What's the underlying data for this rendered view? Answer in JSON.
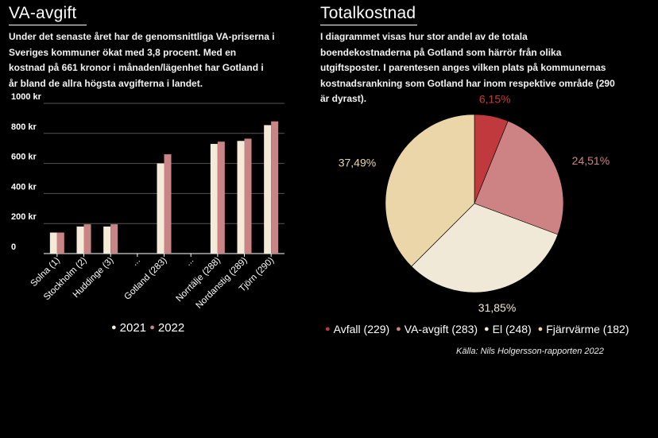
{
  "left": {
    "heading": "VA-avgift",
    "description": "Under det senaste året har de genomsnittliga VA-priserna i Sveriges kommuner ökat med 3,8 procent. Med en kostnad på 661 kronor i månaden/lägenhet har Gotland i år bland de allra högsta avgifterna i landet."
  },
  "right": {
    "heading": "Totalkostnad",
    "description": "I diagrammet visas hur stor andel av de totala boendekostnaderna på Gotland som härrör från olika utgiftsposter. I parentesen anges vilken plats på kommunernas kostnadsrankning som Gotland har inom respektive område (290 är dyrast).",
    "source": "Källa: Nils Holgersson-rapporten 2022"
  },
  "colors": {
    "c2021": "#f3ead8",
    "c2022": "#c98485",
    "avfall": "#c0393c",
    "va": "#cd8284",
    "el": "#f1e9d7",
    "fjarr": "#ebd6aa"
  },
  "chart_data": [
    {
      "type": "bar",
      "categories": [
        "Solna (1)",
        "Stockholm (2)",
        "Huddinge (3)",
        "...",
        "Gotland (283)",
        "...",
        "Norrtälje (288)",
        "Nordanstig (289)",
        "Tjörn (290)"
      ],
      "series": [
        {
          "name": "2021",
          "color": "#f3ead8",
          "values": [
            140,
            180,
            180,
            null,
            600,
            null,
            730,
            750,
            855
          ]
        },
        {
          "name": "2022",
          "color": "#c98485",
          "values": [
            140,
            195,
            195,
            null,
            661,
            null,
            745,
            765,
            880
          ]
        }
      ],
      "yticks": [
        "1000 kr",
        "800 kr",
        "600 kr",
        "400 kr",
        "200 kr",
        "0"
      ],
      "ytick_values": [
        1000,
        800,
        600,
        400,
        200,
        0
      ],
      "ylim": [
        0,
        1000
      ],
      "legend": [
        {
          "label": "2021",
          "color": "#f3ead8"
        },
        {
          "label": "2022",
          "color": "#c98485"
        }
      ]
    },
    {
      "type": "pie",
      "slices": [
        {
          "label": "6,15%",
          "value": 6.15,
          "color": "#c0393c",
          "label_color": "#c0393c"
        },
        {
          "label": "24,51%",
          "value": 24.51,
          "color": "#cd8284",
          "label_color": "#cd8284"
        },
        {
          "label": "31,85%",
          "value": 31.85,
          "color": "#f1e9d7",
          "label_color": "#f1e9d7"
        },
        {
          "label": "37,49%",
          "value": 37.49,
          "color": "#ebd6aa",
          "label_color": "#ebd6aa"
        }
      ],
      "legend": [
        {
          "label": "Avfall (229)",
          "color": "#c0393c"
        },
        {
          "label": "VA-avgift (283)",
          "color": "#cd8284"
        },
        {
          "label": "El (248)",
          "color": "#f1e9d7"
        },
        {
          "label": "Fjärrvärme (182)",
          "color": "#ebd6aa"
        }
      ]
    }
  ]
}
